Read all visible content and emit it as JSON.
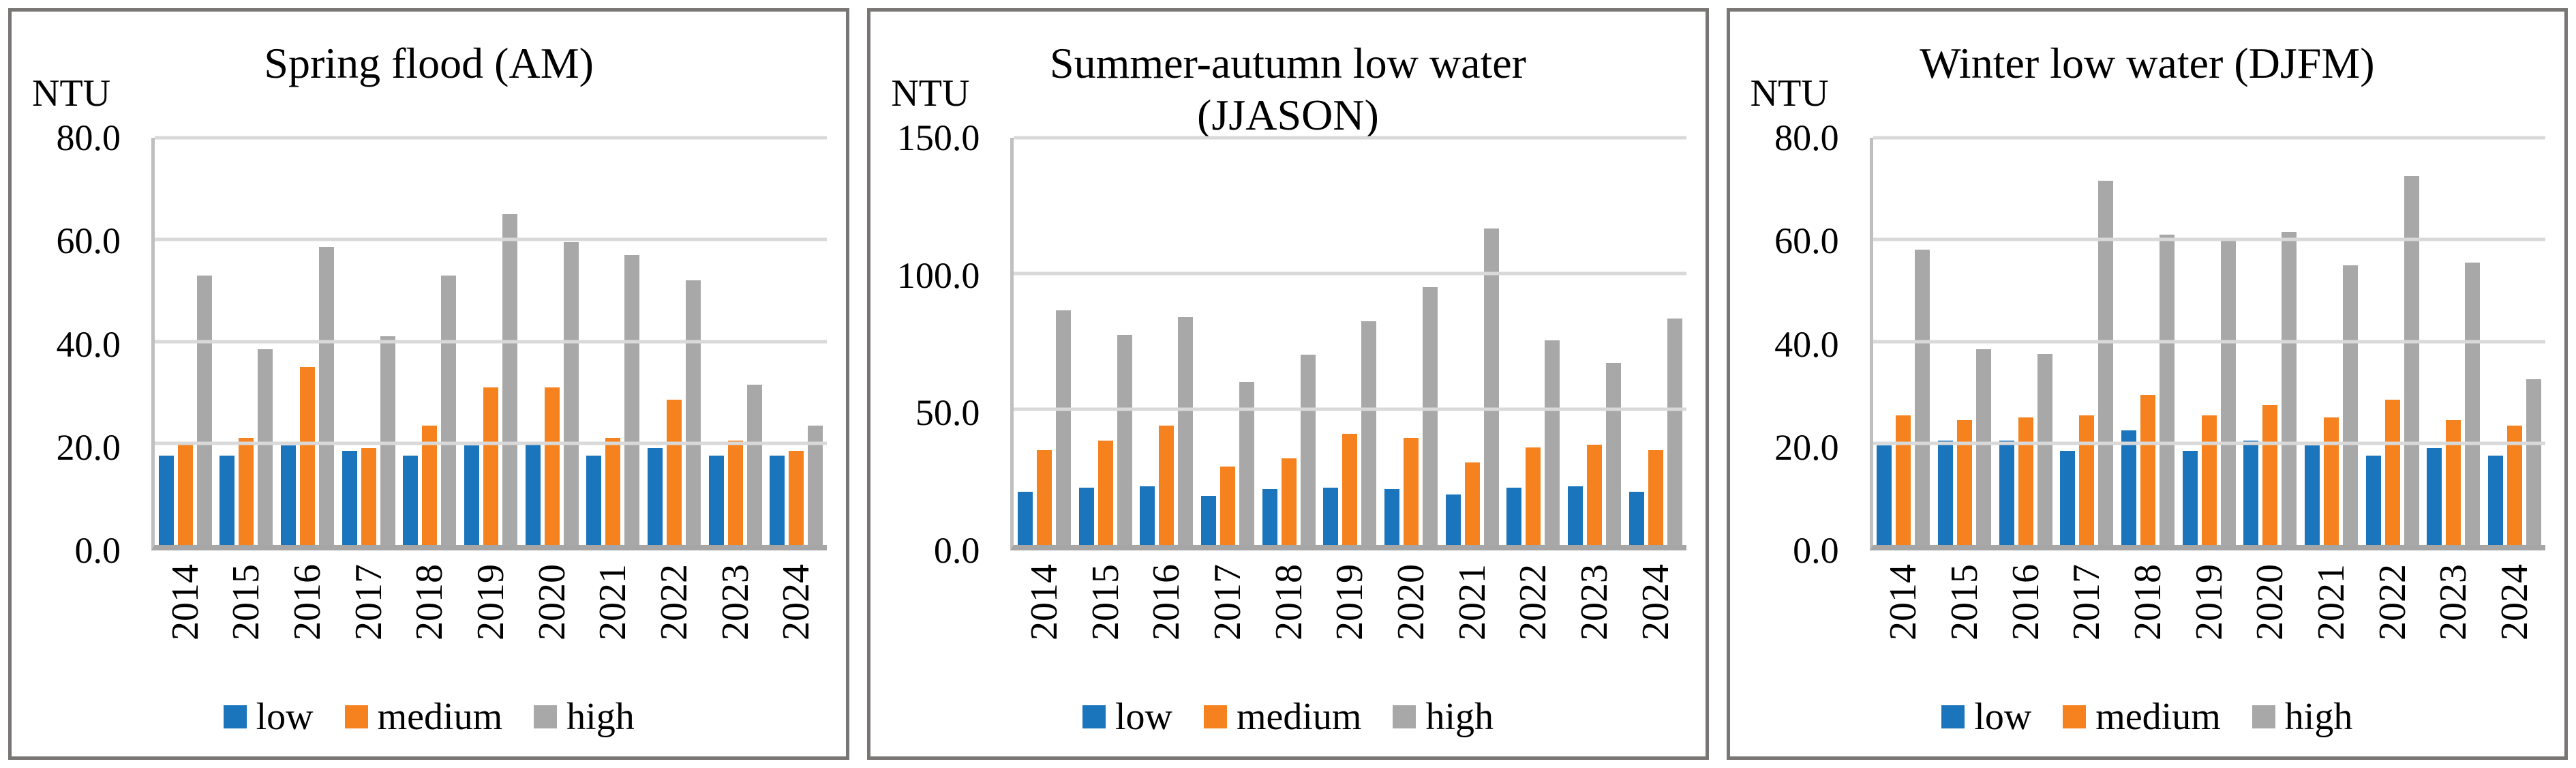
{
  "figure": {
    "background": "#FFFFFF",
    "panel_border_color": "#7A7575",
    "gridline_color": "#D9D9D9",
    "y_axis_line_color": "#BFBFBF",
    "baseline_color": "#A6A6A6"
  },
  "years": [
    "2014",
    "2015",
    "2016",
    "2017",
    "2018",
    "2019",
    "2020",
    "2021",
    "2022",
    "2023",
    "2024"
  ],
  "legend": {
    "items": [
      {
        "label": "low",
        "color": "#1B75BC"
      },
      {
        "label": "medium",
        "color": "#F6821F"
      },
      {
        "label": "high",
        "color": "#A8A8A8"
      }
    ]
  },
  "chart_data": [
    {
      "type": "bar",
      "title": "Spring flood (AM)",
      "ylabel": "NTU",
      "xlabel": "",
      "ylim": [
        0,
        80
      ],
      "ytick_labels": [
        "80.0",
        "60.0",
        "40.0",
        "20.0",
        "0.0"
      ],
      "grid": true,
      "legend_position": "bottom",
      "categories": [
        "2014",
        "2015",
        "2016",
        "2017",
        "2018",
        "2019",
        "2020",
        "2021",
        "2022",
        "2023",
        "2024"
      ],
      "series": [
        {
          "name": "low",
          "color": "#1B75BC",
          "values": [
            17.5,
            17.5,
            19.5,
            18.5,
            17.5,
            19.5,
            20.0,
            17.5,
            19.0,
            17.5,
            17.5
          ]
        },
        {
          "name": "medium",
          "color": "#F6821F",
          "values": [
            20.0,
            21.0,
            35.0,
            19.0,
            23.5,
            31.0,
            31.0,
            21.0,
            28.5,
            20.5,
            18.5
          ]
        },
        {
          "name": "high",
          "color": "#A8A8A8",
          "values": [
            53.0,
            38.5,
            58.5,
            41.0,
            53.0,
            65.0,
            59.5,
            57.0,
            52.0,
            31.5,
            23.5
          ]
        }
      ]
    },
    {
      "type": "bar",
      "title": "Summer-autumn low water (JJASON)",
      "ylabel": "NTU",
      "xlabel": "",
      "ylim": [
        0,
        150
      ],
      "ytick_labels": [
        "150.0",
        "100.0",
        "50.0",
        "0.0"
      ],
      "grid": true,
      "legend_position": "bottom",
      "categories": [
        "2014",
        "2015",
        "2016",
        "2017",
        "2018",
        "2019",
        "2020",
        "2021",
        "2022",
        "2023",
        "2024"
      ],
      "series": [
        {
          "name": "low",
          "color": "#1B75BC",
          "values": [
            19.5,
            21.0,
            21.5,
            18.0,
            20.5,
            21.0,
            20.5,
            18.5,
            21.0,
            21.5,
            19.5
          ]
        },
        {
          "name": "medium",
          "color": "#F6821F",
          "values": [
            35.0,
            38.5,
            44.0,
            29.0,
            32.0,
            41.0,
            39.5,
            30.5,
            36.0,
            37.0,
            35.0
          ]
        },
        {
          "name": "high",
          "color": "#A8A8A8",
          "values": [
            86.5,
            77.5,
            84.0,
            60.0,
            70.0,
            82.5,
            95.0,
            116.5,
            75.5,
            67.0,
            83.5
          ]
        }
      ]
    },
    {
      "type": "bar",
      "title": "Winter low water (DJFM)",
      "ylabel": "NTU",
      "xlabel": "",
      "ylim": [
        0,
        80
      ],
      "ytick_labels": [
        "80.0",
        "60.0",
        "40.0",
        "20.0",
        "0.0"
      ],
      "grid": true,
      "legend_position": "bottom",
      "categories": [
        "2014",
        "2015",
        "2016",
        "2017",
        "2018",
        "2019",
        "2020",
        "2021",
        "2022",
        "2023",
        "2024"
      ],
      "series": [
        {
          "name": "low",
          "color": "#1B75BC",
          "values": [
            19.5,
            20.5,
            20.5,
            18.5,
            22.5,
            18.5,
            20.5,
            19.5,
            17.5,
            19.0,
            17.5
          ]
        },
        {
          "name": "medium",
          "color": "#F6821F",
          "values": [
            25.5,
            24.5,
            25.0,
            25.5,
            29.5,
            25.5,
            27.5,
            25.0,
            28.5,
            24.5,
            23.5
          ]
        },
        {
          "name": "high",
          "color": "#A8A8A8",
          "values": [
            58.0,
            38.5,
            37.5,
            71.5,
            61.0,
            60.0,
            61.5,
            55.0,
            72.5,
            55.5,
            32.5
          ]
        }
      ]
    }
  ]
}
